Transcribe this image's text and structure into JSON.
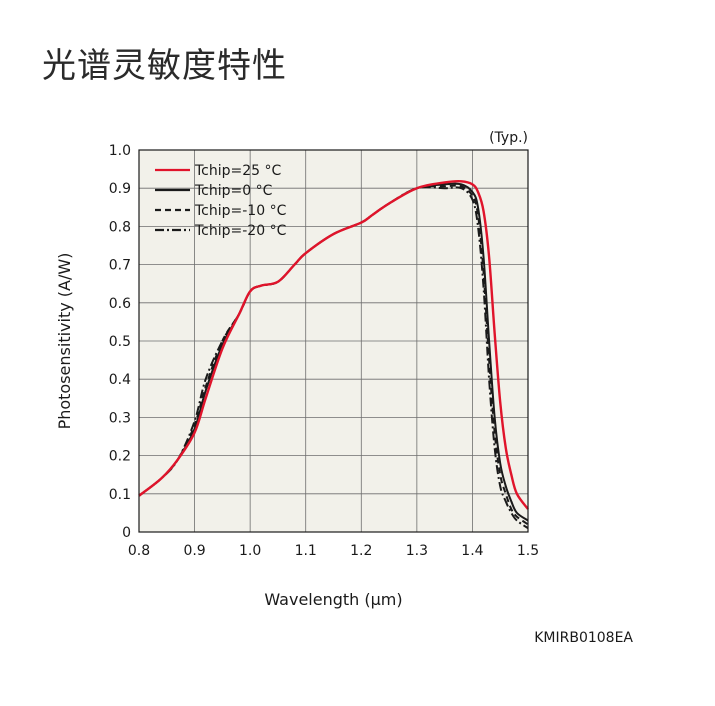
{
  "page": {
    "title": "光谱灵敏度特性",
    "figure_code": "KMIRB0108EA"
  },
  "colors": {
    "plot_background": "#f2f1ea",
    "grid": "#6e6e6e",
    "series_25": "#e0142b",
    "series_other": "#1a1a1a"
  },
  "chart_data": {
    "type": "line",
    "note": "(Typ.)",
    "xlabel": "Wavelength (μm)",
    "ylabel": "Photosensitivity (A/W)",
    "xlim": [
      0.8,
      1.5
    ],
    "ylim": [
      0,
      1.0
    ],
    "xticks": [
      0.8,
      0.9,
      1.0,
      1.1,
      1.2,
      1.3,
      1.4,
      1.5
    ],
    "xtick_labels": [
      "0.8",
      "0.9",
      "1.0",
      "1.1",
      "1.2",
      "1.3",
      "1.4",
      "1.5"
    ],
    "yticks": [
      0,
      0.1,
      0.2,
      0.3,
      0.4,
      0.5,
      0.6,
      0.7,
      0.8,
      0.9,
      1.0
    ],
    "ytick_labels": [
      "0",
      "0.1",
      "0.2",
      "0.3",
      "0.4",
      "0.5",
      "0.6",
      "0.7",
      "0.8",
      "0.9",
      "1.0"
    ],
    "grid": true,
    "legend_position": "top-left",
    "series": [
      {
        "name": "Tchip=25 °C",
        "color": "#e0142b",
        "dash": "solid",
        "x": [
          0.8,
          0.84,
          0.87,
          0.9,
          0.92,
          0.95,
          0.98,
          1.0,
          1.02,
          1.05,
          1.08,
          1.1,
          1.15,
          1.2,
          1.22,
          1.25,
          1.3,
          1.35,
          1.38,
          1.4,
          1.41,
          1.42,
          1.43,
          1.44,
          1.45,
          1.46,
          1.47,
          1.48,
          1.5
        ],
        "y": [
          0.095,
          0.14,
          0.19,
          0.26,
          0.35,
          0.48,
          0.57,
          0.63,
          0.645,
          0.655,
          0.7,
          0.73,
          0.78,
          0.81,
          0.83,
          0.86,
          0.9,
          0.915,
          0.918,
          0.91,
          0.89,
          0.84,
          0.72,
          0.52,
          0.34,
          0.22,
          0.15,
          0.1,
          0.06
        ]
      },
      {
        "name": "Tchip=0 °C",
        "color": "#1a1a1a",
        "dash": "solid",
        "x": [
          0.8,
          0.84,
          0.87,
          0.9,
          0.92,
          0.95,
          0.98,
          1.0,
          1.02,
          1.05,
          1.08,
          1.1,
          1.15,
          1.2,
          1.22,
          1.25,
          1.3,
          1.35,
          1.38,
          1.4,
          1.41,
          1.42,
          1.43,
          1.44,
          1.45,
          1.46,
          1.47,
          1.48,
          1.5
        ],
        "y": [
          0.095,
          0.14,
          0.19,
          0.27,
          0.37,
          0.49,
          0.57,
          0.63,
          0.645,
          0.655,
          0.7,
          0.73,
          0.78,
          0.81,
          0.83,
          0.86,
          0.9,
          0.91,
          0.91,
          0.89,
          0.85,
          0.72,
          0.5,
          0.3,
          0.18,
          0.12,
          0.08,
          0.05,
          0.03
        ]
      },
      {
        "name": "Tchip=-10 °C",
        "color": "#1a1a1a",
        "dash": "dashed",
        "x": [
          0.8,
          0.84,
          0.87,
          0.9,
          0.92,
          0.95,
          0.98,
          1.0,
          1.02,
          1.05,
          1.08,
          1.1,
          1.15,
          1.2,
          1.22,
          1.25,
          1.3,
          1.35,
          1.38,
          1.4,
          1.41,
          1.42,
          1.43,
          1.44,
          1.45,
          1.46,
          1.47,
          1.48,
          1.5
        ],
        "y": [
          0.095,
          0.14,
          0.19,
          0.28,
          0.38,
          0.5,
          0.57,
          0.63,
          0.645,
          0.655,
          0.7,
          0.73,
          0.78,
          0.81,
          0.83,
          0.86,
          0.9,
          0.905,
          0.905,
          0.88,
          0.83,
          0.68,
          0.45,
          0.26,
          0.15,
          0.1,
          0.06,
          0.04,
          0.02
        ]
      },
      {
        "name": "Tchip=-20 °C",
        "color": "#1a1a1a",
        "dash": "dashdot",
        "x": [
          0.8,
          0.84,
          0.87,
          0.9,
          0.92,
          0.95,
          0.98,
          1.0,
          1.02,
          1.05,
          1.08,
          1.1,
          1.15,
          1.2,
          1.22,
          1.25,
          1.3,
          1.35,
          1.38,
          1.4,
          1.41,
          1.42,
          1.43,
          1.44,
          1.45,
          1.46,
          1.47,
          1.48,
          1.5
        ],
        "y": [
          0.095,
          0.14,
          0.19,
          0.29,
          0.4,
          0.5,
          0.57,
          0.63,
          0.645,
          0.655,
          0.7,
          0.73,
          0.78,
          0.81,
          0.83,
          0.86,
          0.9,
          0.9,
          0.9,
          0.87,
          0.8,
          0.64,
          0.4,
          0.22,
          0.12,
          0.08,
          0.05,
          0.03,
          0.01
        ]
      }
    ]
  }
}
